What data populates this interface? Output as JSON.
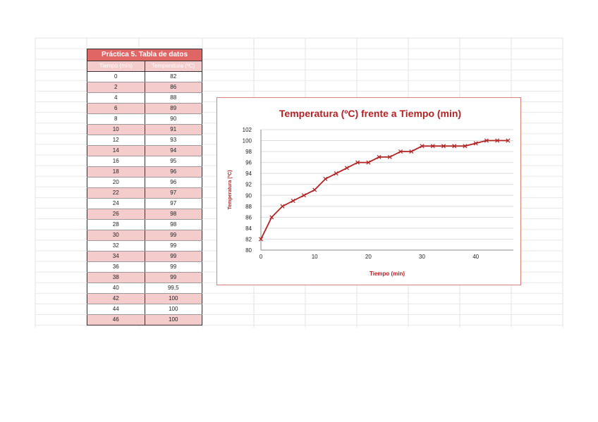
{
  "table": {
    "title": "Práctica 5. Tabla de datos",
    "headers": [
      "Tiempo (min)",
      "Temperatura (ºC)"
    ],
    "rows": [
      [
        "0",
        "82"
      ],
      [
        "2",
        "86"
      ],
      [
        "4",
        "88"
      ],
      [
        "6",
        "89"
      ],
      [
        "8",
        "90"
      ],
      [
        "10",
        "91"
      ],
      [
        "12",
        "93"
      ],
      [
        "14",
        "94"
      ],
      [
        "16",
        "95"
      ],
      [
        "18",
        "96"
      ],
      [
        "20",
        "96"
      ],
      [
        "22",
        "97"
      ],
      [
        "24",
        "97"
      ],
      [
        "26",
        "98"
      ],
      [
        "28",
        "98"
      ],
      [
        "30",
        "99"
      ],
      [
        "32",
        "99"
      ],
      [
        "34",
        "99"
      ],
      [
        "36",
        "99"
      ],
      [
        "38",
        "99"
      ],
      [
        "40",
        "99,5"
      ],
      [
        "42",
        "100"
      ],
      [
        "44",
        "100"
      ],
      [
        "46",
        "100"
      ]
    ]
  },
  "chart_data": {
    "type": "line",
    "title": "Temperatura (ºC) frente a Tiempo (min)",
    "xlabel": "Tiempo (min)",
    "ylabel": "Temperatura (ºC)",
    "x": [
      0,
      2,
      4,
      6,
      8,
      10,
      12,
      14,
      16,
      18,
      20,
      22,
      24,
      26,
      28,
      30,
      32,
      34,
      36,
      38,
      40,
      42,
      44,
      46
    ],
    "series": [
      {
        "values": [
          82,
          86,
          88,
          89,
          90,
          91,
          93,
          94,
          95,
          96,
          96,
          97,
          97,
          98,
          98,
          99,
          99,
          99,
          99,
          99,
          99.5,
          100,
          100,
          100
        ]
      }
    ],
    "xlim": [
      0,
      47
    ],
    "ylim": [
      80,
      102
    ],
    "xticks": [
      0,
      10,
      20,
      30,
      40
    ],
    "yticks": [
      80,
      82,
      84,
      86,
      88,
      90,
      92,
      94,
      96,
      98,
      100,
      102
    ],
    "grid": true,
    "marker": "x",
    "color": "#b22222",
    "title_color": "#b22222"
  }
}
